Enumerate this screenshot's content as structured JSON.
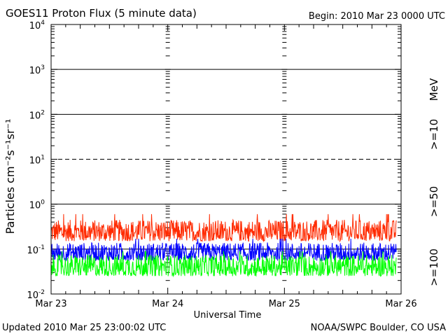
{
  "chart_data": {
    "type": "line",
    "title": "GOES11 Proton Flux (5 minute data)",
    "subtitle": "Begin: 2010 Mar 23 0000 UTC",
    "xlabel": "Universal Time",
    "ylabel": "Particles cm⁻²s⁻¹sr⁻¹",
    "yscale": "log",
    "ylim": [
      0.01,
      10000
    ],
    "xlim": [
      0,
      3
    ],
    "x_ticks": [
      "Mar 23",
      "Mar 24",
      "Mar 25",
      "Mar 26"
    ],
    "y_ticks": [
      {
        "base": "10",
        "exp": "-2"
      },
      {
        "base": "10",
        "exp": "-1"
      },
      {
        "base": "10",
        "exp": "0"
      },
      {
        "base": "10",
        "exp": "1"
      },
      {
        "base": "10",
        "exp": "2"
      },
      {
        "base": "10",
        "exp": "3"
      },
      {
        "base": "10",
        "exp": "4"
      }
    ],
    "x_end": 2.96,
    "right_label_unit": "MeV",
    "series": [
      {
        "name": ">=10",
        "color": "#ff2a00",
        "low": 0.15,
        "high": 0.45,
        "peak": 0.6
      },
      {
        "name": ">=50",
        "color": "#0000ff",
        "low": 0.055,
        "high": 0.14,
        "peak": 0.17
      },
      {
        "name": ">=100",
        "color": "#00ff00",
        "low": 0.025,
        "high": 0.075,
        "peak": 0.09
      }
    ]
  },
  "footer": {
    "updated": "Updated 2010 Mar 25 23:00:02 UTC",
    "credit": "NOAA/SWPC Boulder, CO USA"
  }
}
